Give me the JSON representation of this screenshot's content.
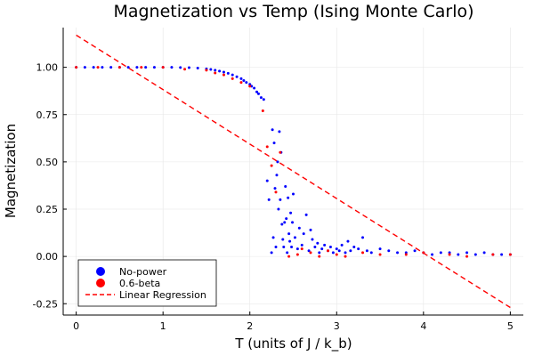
{
  "chart_data": {
    "type": "scatter",
    "title": "Magnetization vs Temp (Ising Monte Carlo)",
    "xlabel": "T (units of J / k_b)",
    "ylabel": "Magnetization",
    "xlim": [
      -0.15,
      5.15
    ],
    "ylim": [
      -0.31,
      1.21
    ],
    "xticks": [
      0,
      1,
      2,
      3,
      4,
      5
    ],
    "xtick_labels": [
      "0",
      "1",
      "2",
      "3",
      "4",
      "5"
    ],
    "yticks": [
      -0.25,
      0,
      0.25,
      0.5,
      0.75,
      1.0
    ],
    "ytick_labels": [
      "-0.25",
      "0.00",
      "0.25",
      "0.50",
      "0.75",
      "1.00"
    ],
    "grid": true,
    "legend_position": "bottom-left",
    "series": [
      {
        "name": "No-power",
        "kind": "points",
        "color": "#0000ff",
        "x": [
          0.0,
          0.1,
          0.2,
          0.3,
          0.4,
          0.5,
          0.6,
          0.7,
          0.8,
          0.9,
          1.0,
          1.1,
          1.2,
          1.3,
          1.4,
          1.5,
          1.55,
          1.6,
          1.65,
          1.7,
          1.75,
          1.8,
          1.85,
          1.9,
          1.93,
          1.96,
          2.0,
          2.02,
          2.05,
          2.08,
          2.1,
          2.13,
          2.16,
          2.2,
          2.22,
          2.25,
          2.26,
          2.27,
          2.28,
          2.29,
          2.3,
          2.31,
          2.32,
          2.33,
          2.34,
          2.35,
          2.36,
          2.37,
          2.38,
          2.39,
          2.4,
          2.41,
          2.42,
          2.43,
          2.44,
          2.45,
          2.46,
          2.47,
          2.48,
          2.49,
          2.5,
          2.52,
          2.55,
          2.57,
          2.6,
          2.62,
          2.65,
          2.68,
          2.7,
          2.72,
          2.75,
          2.78,
          2.8,
          2.83,
          2.86,
          2.9,
          2.93,
          2.96,
          3.0,
          3.03,
          3.06,
          3.1,
          3.13,
          3.16,
          3.2,
          3.25,
          3.3,
          3.35,
          3.4,
          3.5,
          3.6,
          3.7,
          3.8,
          3.9,
          4.0,
          4.1,
          4.2,
          4.3,
          4.4,
          4.5,
          4.6,
          4.7,
          4.8,
          4.9,
          5.0
        ],
        "y": [
          1.0,
          1.0,
          1.0,
          1.0,
          1.0,
          1.0,
          1.0,
          1.0,
          1.0,
          1.0,
          1.0,
          1.0,
          0.999,
          0.998,
          0.996,
          0.992,
          0.989,
          0.985,
          0.98,
          0.975,
          0.968,
          0.96,
          0.95,
          0.94,
          0.93,
          0.92,
          0.91,
          0.9,
          0.89,
          0.87,
          0.86,
          0.84,
          0.83,
          0.4,
          0.3,
          0.02,
          0.67,
          0.1,
          0.6,
          0.36,
          0.05,
          0.43,
          0.5,
          0.25,
          0.66,
          0.3,
          0.55,
          0.17,
          0.09,
          0.05,
          0.18,
          0.37,
          0.2,
          0.02,
          0.31,
          0.12,
          0.08,
          0.23,
          0.05,
          0.18,
          0.33,
          0.1,
          0.04,
          0.15,
          0.06,
          0.12,
          0.22,
          0.03,
          0.14,
          0.09,
          0.05,
          0.07,
          0.02,
          0.04,
          0.06,
          0.03,
          0.05,
          0.02,
          0.04,
          0.03,
          0.06,
          0.02,
          0.08,
          0.03,
          0.05,
          0.04,
          0.1,
          0.03,
          0.02,
          0.04,
          0.03,
          0.02,
          0.02,
          0.03,
          0.02,
          0.01,
          0.02,
          0.02,
          0.01,
          0.02,
          0.01,
          0.02,
          0.01,
          0.01,
          0.01
        ]
      },
      {
        "name": "0.6-beta",
        "kind": "points",
        "color": "#ff0000",
        "x": [
          0.0,
          0.25,
          0.5,
          0.75,
          1.0,
          1.25,
          1.5,
          1.6,
          1.7,
          1.8,
          1.9,
          2.0,
          2.15,
          2.2,
          2.25,
          2.3,
          2.35,
          2.45,
          2.55,
          2.6,
          2.7,
          2.8,
          2.9,
          3.0,
          3.1,
          3.3,
          3.5,
          3.8,
          4.0,
          4.3,
          4.5,
          4.8,
          5.0
        ],
        "y": [
          1.0,
          1.0,
          1.0,
          1.0,
          1.0,
          0.99,
          0.985,
          0.97,
          0.96,
          0.94,
          0.92,
          0.9,
          0.77,
          0.58,
          0.48,
          0.34,
          0.55,
          0.0,
          0.01,
          0.04,
          0.02,
          0.0,
          0.03,
          0.01,
          0.0,
          0.02,
          0.01,
          0.01,
          0.02,
          0.01,
          0.0,
          0.01,
          0.01
        ]
      },
      {
        "name": "Linear Regression",
        "kind": "line",
        "color": "#ff0000",
        "x": [
          0,
          5
        ],
        "y": [
          1.17,
          -0.27
        ]
      }
    ]
  }
}
